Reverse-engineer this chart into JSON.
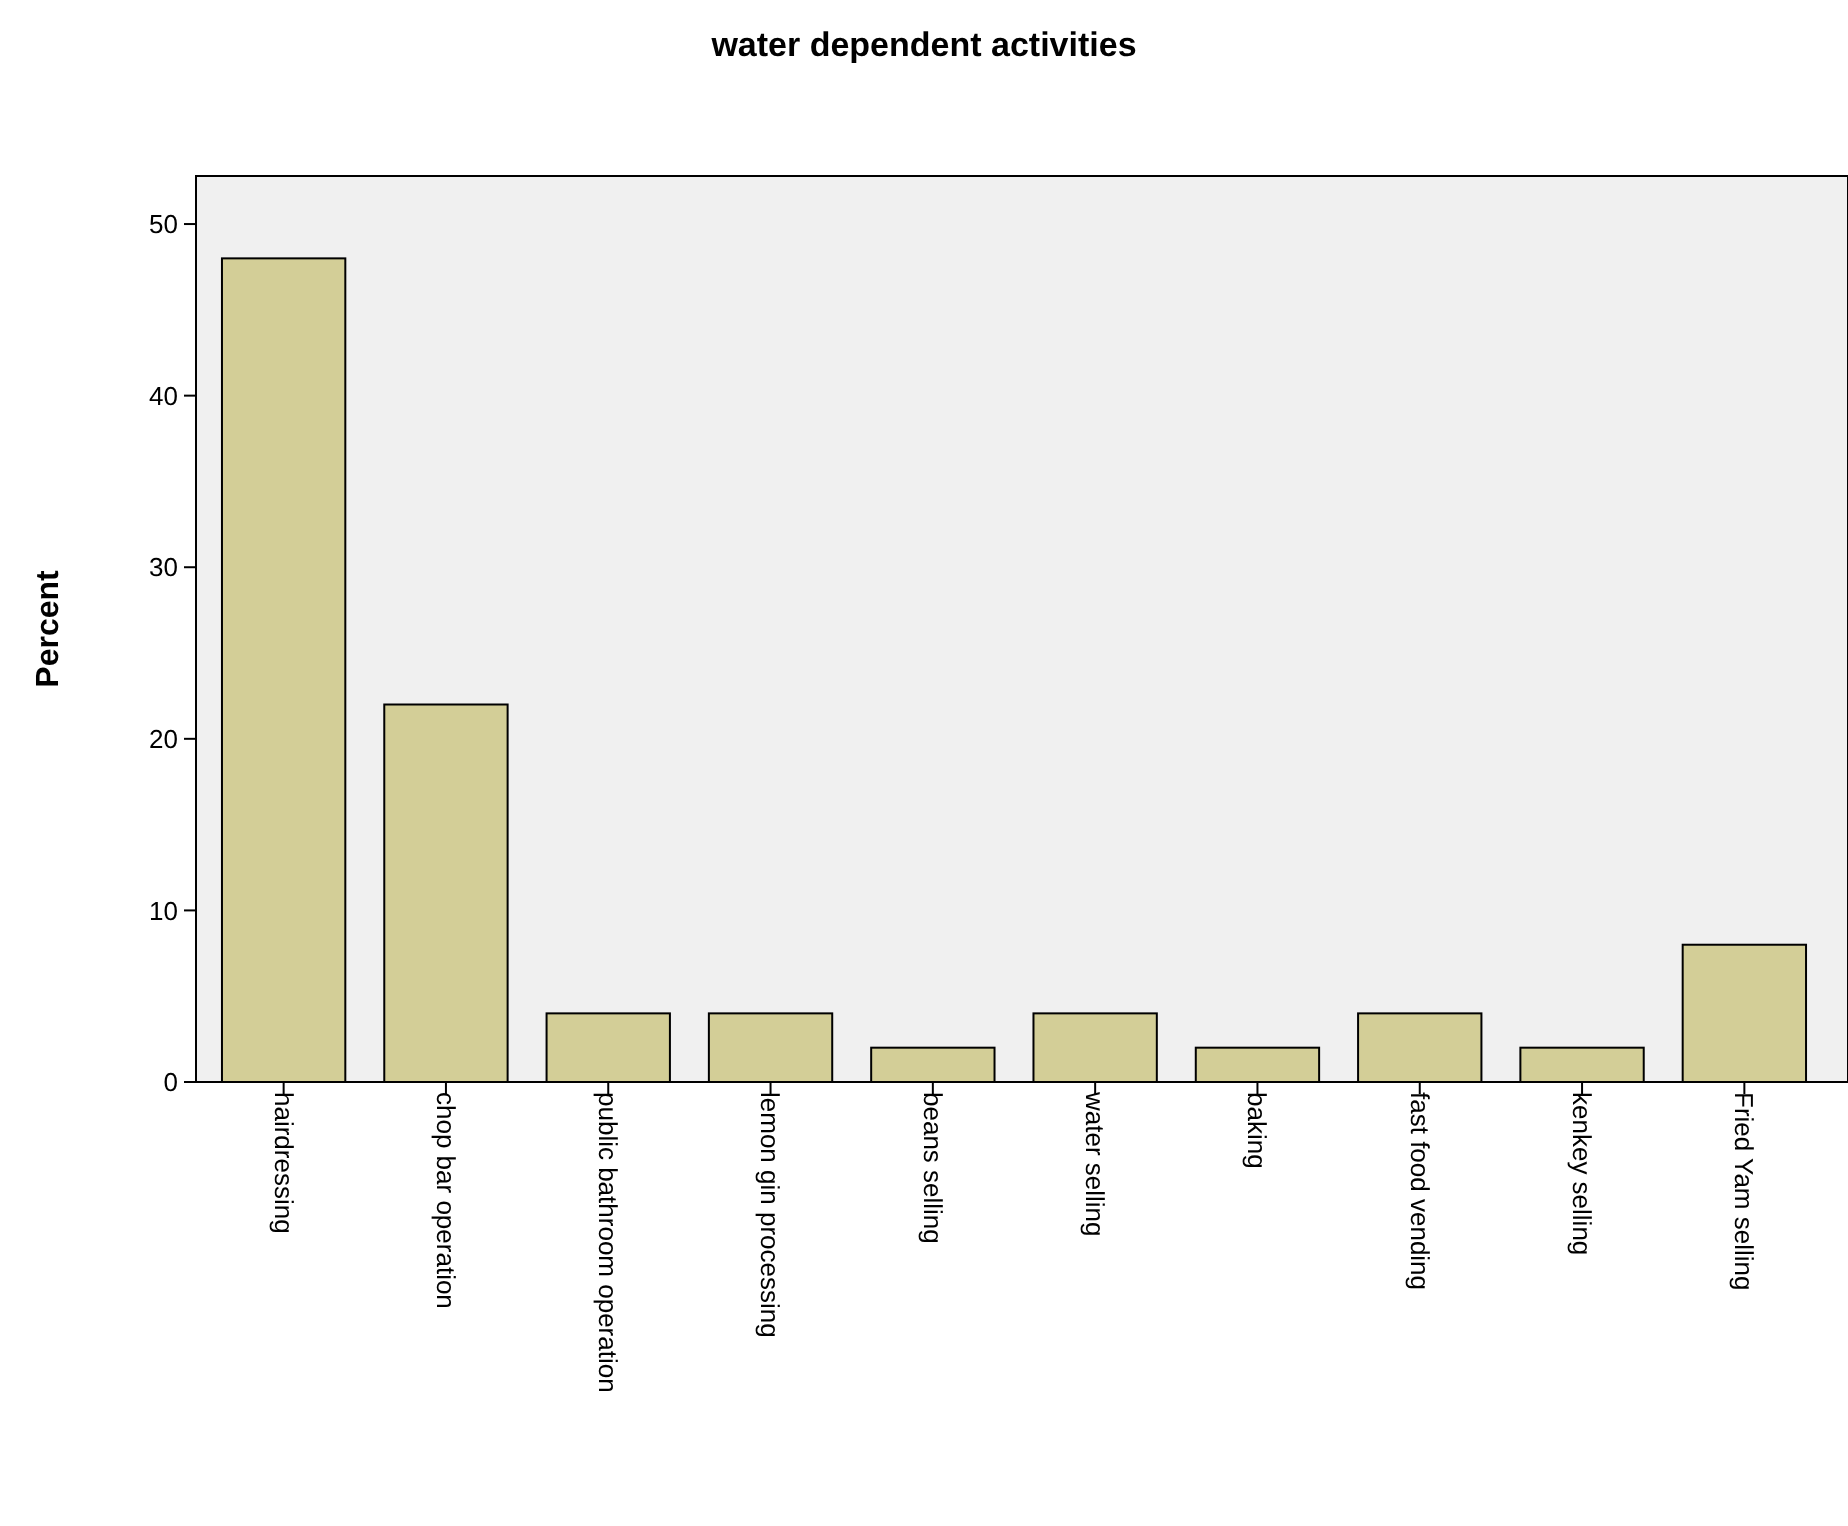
{
  "chart_data": {
    "type": "bar",
    "title": "water dependent activities",
    "ylabel": "Percent",
    "categories": [
      "hairdressing",
      "chop bar operation",
      "public bathroom operation",
      "lemon gin processing",
      "beans selling",
      "water selling",
      "baking",
      "fast food vending",
      "kenkey selling",
      "Fried Yam selling"
    ],
    "values": [
      48,
      22,
      4,
      4,
      2,
      4,
      2,
      4,
      2,
      8
    ],
    "color": "#d3ce97",
    "ylim": [
      0,
      52.8
    ],
    "yticks": [
      0,
      10,
      20,
      30,
      40,
      50
    ],
    "grid": false
  }
}
